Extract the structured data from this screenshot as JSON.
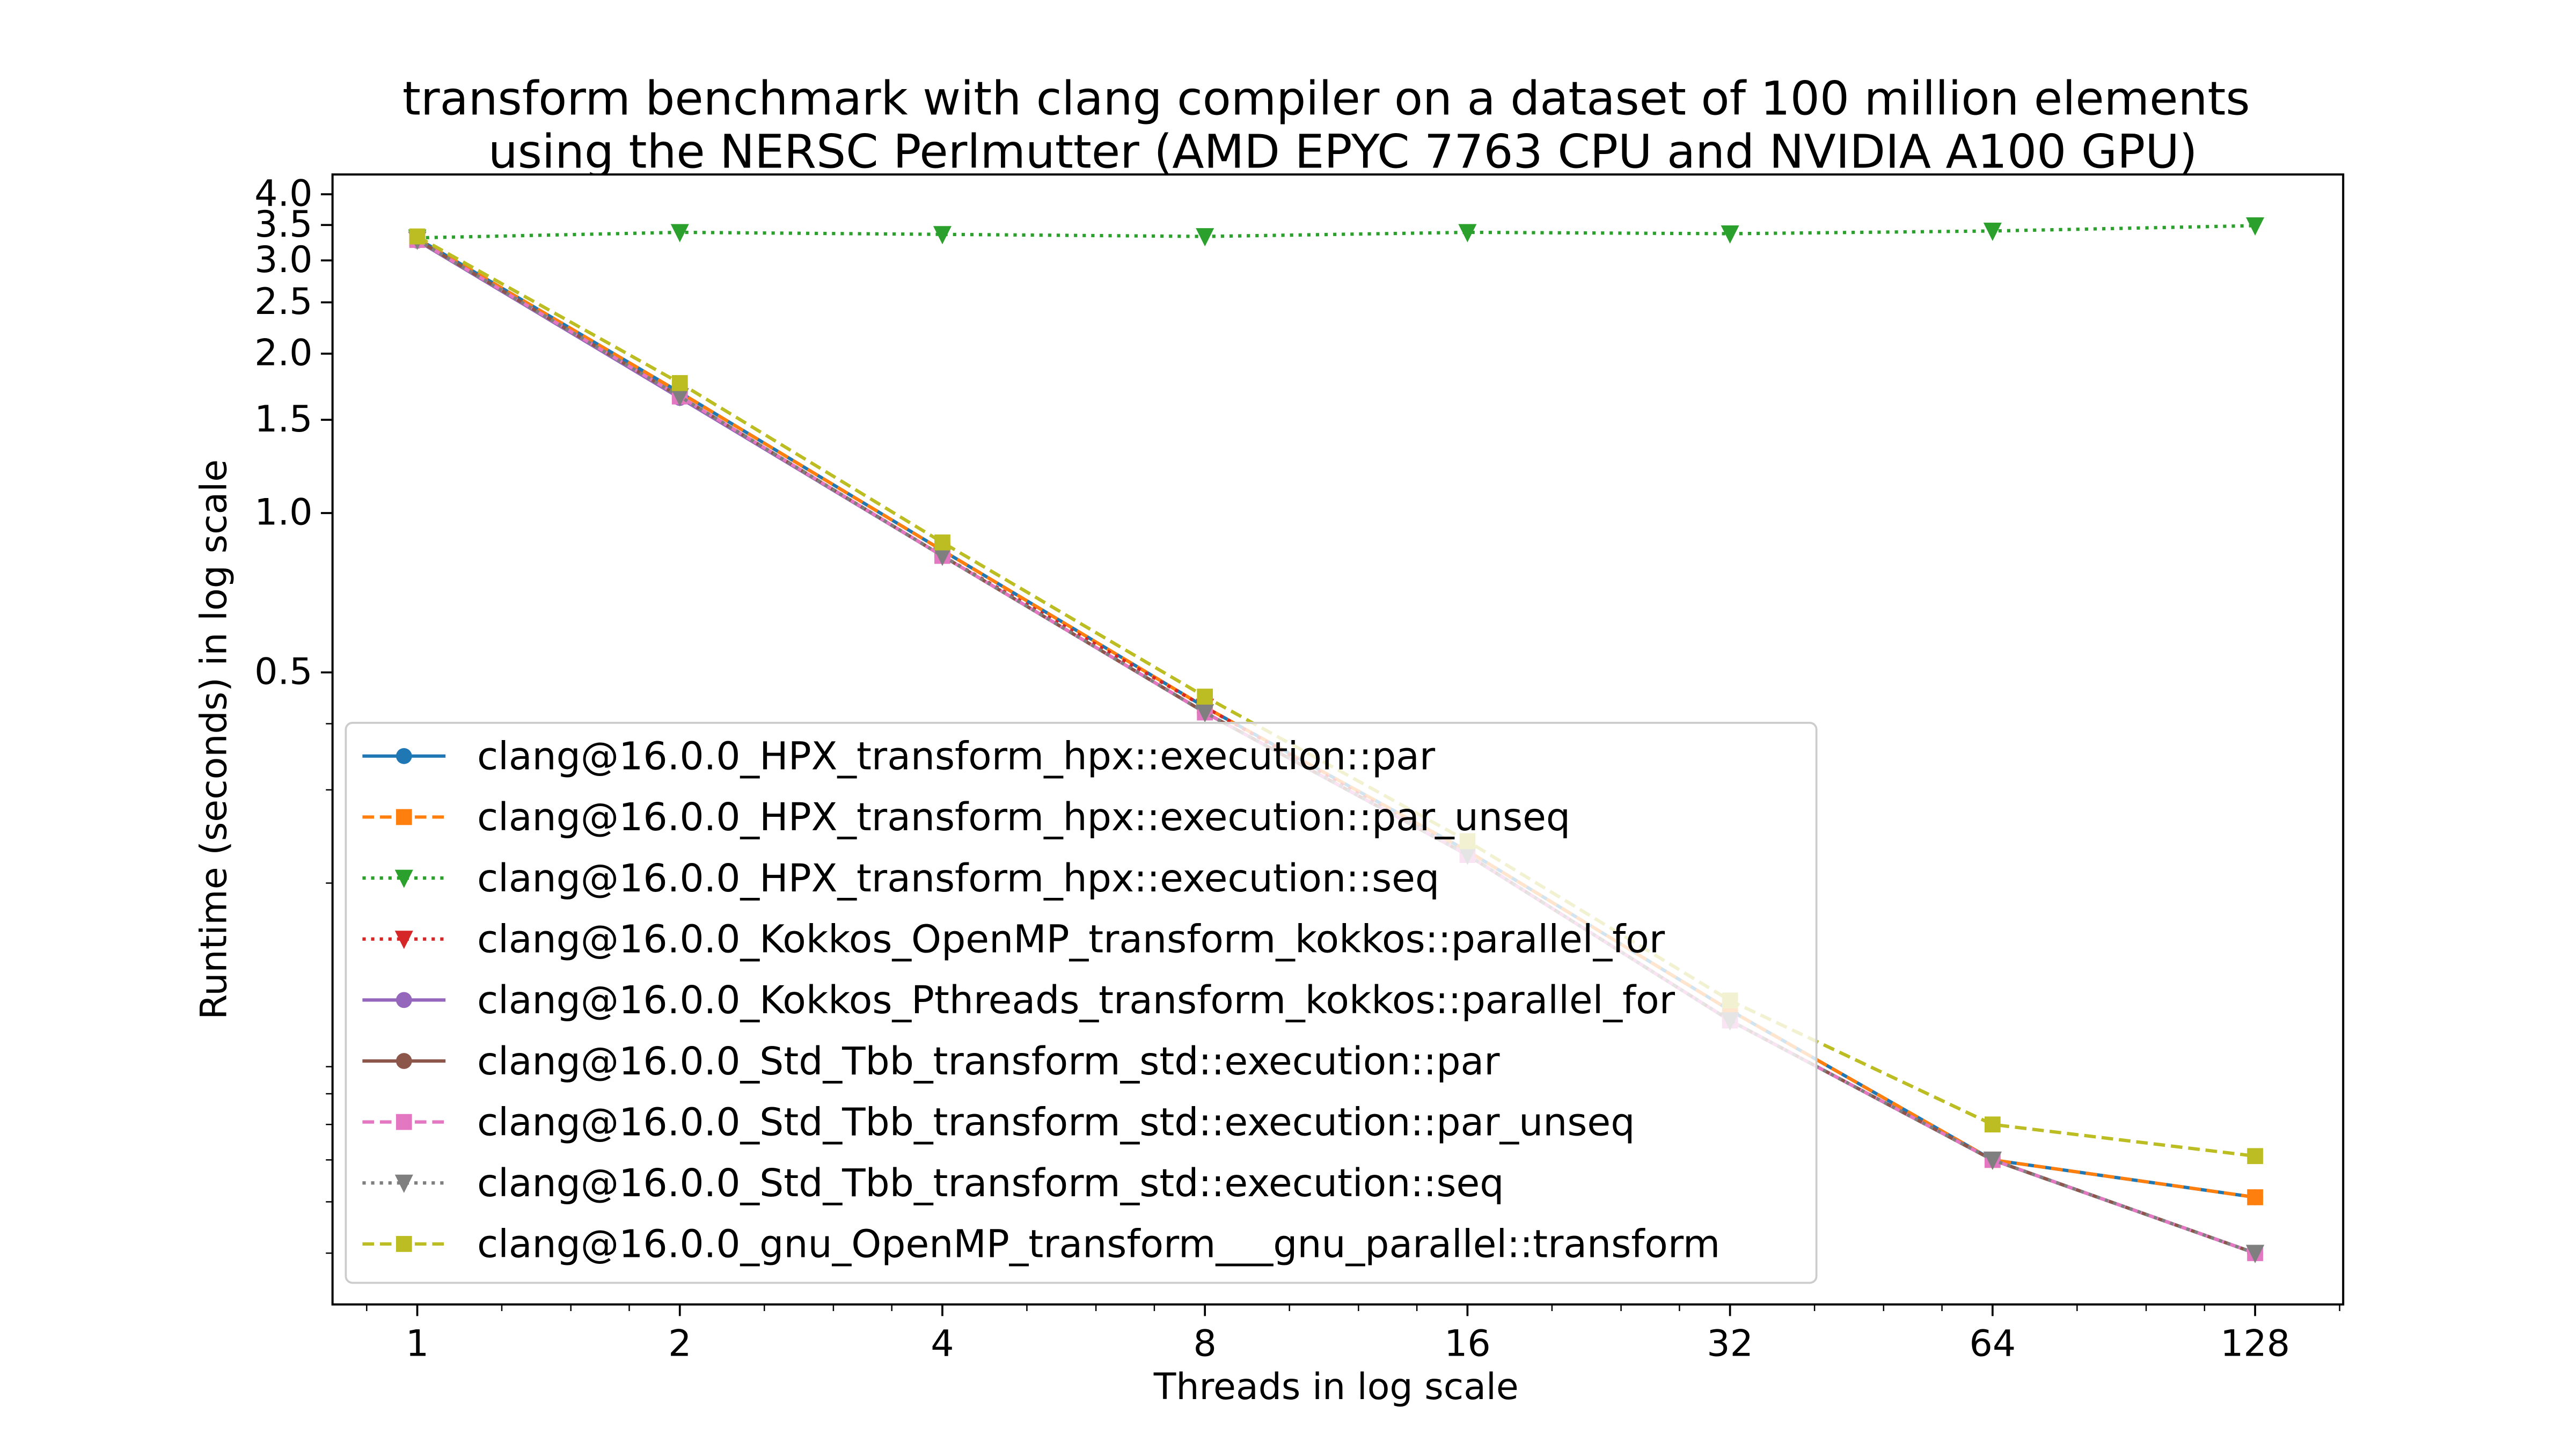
{
  "chart_data": {
    "type": "line",
    "title": [
      "transform benchmark with clang compiler on a dataset of 100 million elements",
      "using the NERSC Perlmutter (AMD EPYC 7763 CPU and NVIDIA A100 GPU)"
    ],
    "xlabel": "Threads in log scale",
    "ylabel": "Runtime (seconds) in log scale",
    "x": [
      1,
      2,
      4,
      8,
      16,
      32,
      64,
      128
    ],
    "x_tick_labels": [
      "1",
      "2",
      "4",
      "8",
      "16",
      "32",
      "64",
      "128"
    ],
    "xscale": "log2",
    "yscale": "log",
    "ylim": [
      0.032,
      4.36
    ],
    "y_ticks": [
      4.0,
      3.5,
      3.0,
      2.5,
      2.0,
      1.5,
      1.0,
      0.5
    ],
    "y_tick_labels": [
      "4.0",
      "3.5",
      "3.0",
      "2.5",
      "2.0",
      "1.5",
      "1.0",
      "0.5"
    ],
    "grid": false,
    "legend_position": "lower-left",
    "series": [
      {
        "name": "clang@16.0.0_HPX_transform_hpx::execution::par",
        "color": "#1f77b4",
        "dash": "solid",
        "marker": "circle",
        "values": [
          3.3,
          1.69,
          0.85,
          0.43,
          0.23,
          0.115,
          0.06,
          0.051
        ]
      },
      {
        "name": "clang@16.0.0_HPX_transform_hpx::execution::par_unseq",
        "color": "#ff7f0e",
        "dash": "dashed",
        "marker": "square",
        "values": [
          3.3,
          1.69,
          0.85,
          0.43,
          0.23,
          0.115,
          0.06,
          0.051
        ]
      },
      {
        "name": "clang@16.0.0_HPX_transform_hpx::execution::seq",
        "color": "#2ca02c",
        "dash": "dotted",
        "marker": "triangle-down",
        "values": [
          3.31,
          3.39,
          3.36,
          3.33,
          3.39,
          3.37,
          3.41,
          3.49
        ]
      },
      {
        "name": "clang@16.0.0_Kokkos_OpenMP_transform_kokkos::parallel_for",
        "color": "#d62728",
        "dash": "dotted",
        "marker": "triangle-down",
        "values": [
          3.28,
          1.66,
          0.83,
          0.43,
          0.226,
          0.11,
          0.06,
          0.04
        ]
      },
      {
        "name": "clang@16.0.0_Kokkos_Pthreads_transform_kokkos::parallel_for",
        "color": "#9467bd",
        "dash": "solid",
        "marker": "circle",
        "values": [
          3.27,
          1.65,
          0.83,
          0.42,
          0.226,
          0.11,
          0.06,
          0.04
        ]
      },
      {
        "name": "clang@16.0.0_Std_Tbb_transform_std::execution::par",
        "color": "#8c564b",
        "dash": "solid",
        "marker": "circle",
        "values": [
          3.28,
          1.66,
          0.83,
          0.42,
          0.226,
          0.11,
          0.06,
          0.04
        ]
      },
      {
        "name": "clang@16.0.0_Std_Tbb_transform_std::execution::par_unseq",
        "color": "#e377c2",
        "dash": "dashed",
        "marker": "square",
        "values": [
          3.28,
          1.66,
          0.83,
          0.42,
          0.226,
          0.11,
          0.06,
          0.04
        ]
      },
      {
        "name": "clang@16.0.0_Std_Tbb_transform_std::execution::seq",
        "color": "#7f7f7f",
        "dash": "dotted",
        "marker": "triangle-down",
        "values": [
          3.28,
          1.66,
          0.83,
          0.42,
          0.226,
          0.11,
          0.06,
          0.04
        ]
      },
      {
        "name": "clang@16.0.0_gnu_OpenMP_transform___gnu_parallel::transform",
        "color": "#bcbd22",
        "dash": "dashed",
        "marker": "square",
        "values": [
          3.33,
          1.76,
          0.88,
          0.45,
          0.24,
          0.12,
          0.07,
          0.061
        ]
      }
    ]
  }
}
